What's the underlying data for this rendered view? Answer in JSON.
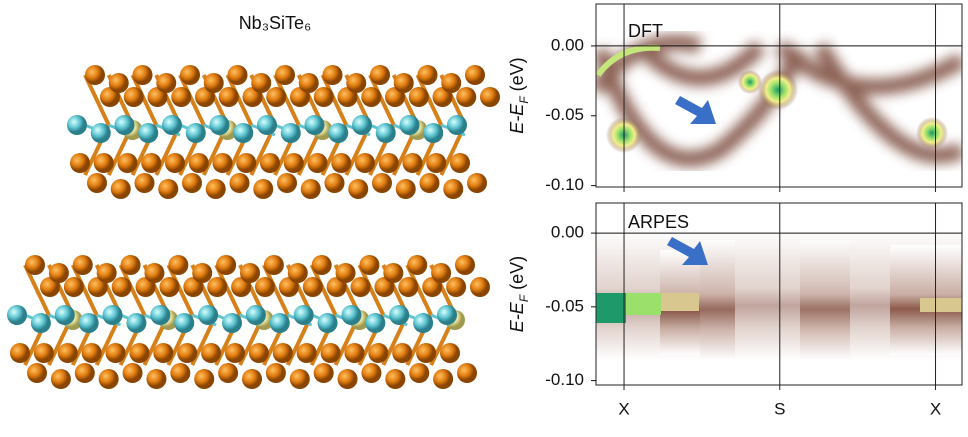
{
  "structure": {
    "title": "Nb₃SiTe₆"
  },
  "panels": [
    {
      "label": "DFT",
      "ylim": [
        -0.101,
        0.03
      ],
      "yticks": [
        {
          "value": 0,
          "label": "0.00"
        },
        {
          "value": -0.05,
          "label": "-0.05"
        },
        {
          "value": -0.1,
          "label": "-0.10"
        }
      ],
      "ylabel": {
        "main": "E-E",
        "sub": "F",
        "unit": "(eV)"
      }
    },
    {
      "label": "ARPES",
      "ylim": [
        -0.103,
        0.0204
      ],
      "yticks": [
        {
          "value": 0,
          "label": "0.00"
        },
        {
          "value": -0.05,
          "label": "-0.05"
        },
        {
          "value": -0.1,
          "label": "-0.10"
        }
      ],
      "ylabel": {
        "main": "E-E",
        "sub": "F",
        "unit": "(eV)"
      }
    }
  ],
  "xlim": [
    -0.18,
    2.17
  ],
  "xticks": [
    {
      "value": 0,
      "label": "X"
    },
    {
      "value": 1,
      "label": "S"
    },
    {
      "value": 2,
      "label": "X"
    }
  ]
}
